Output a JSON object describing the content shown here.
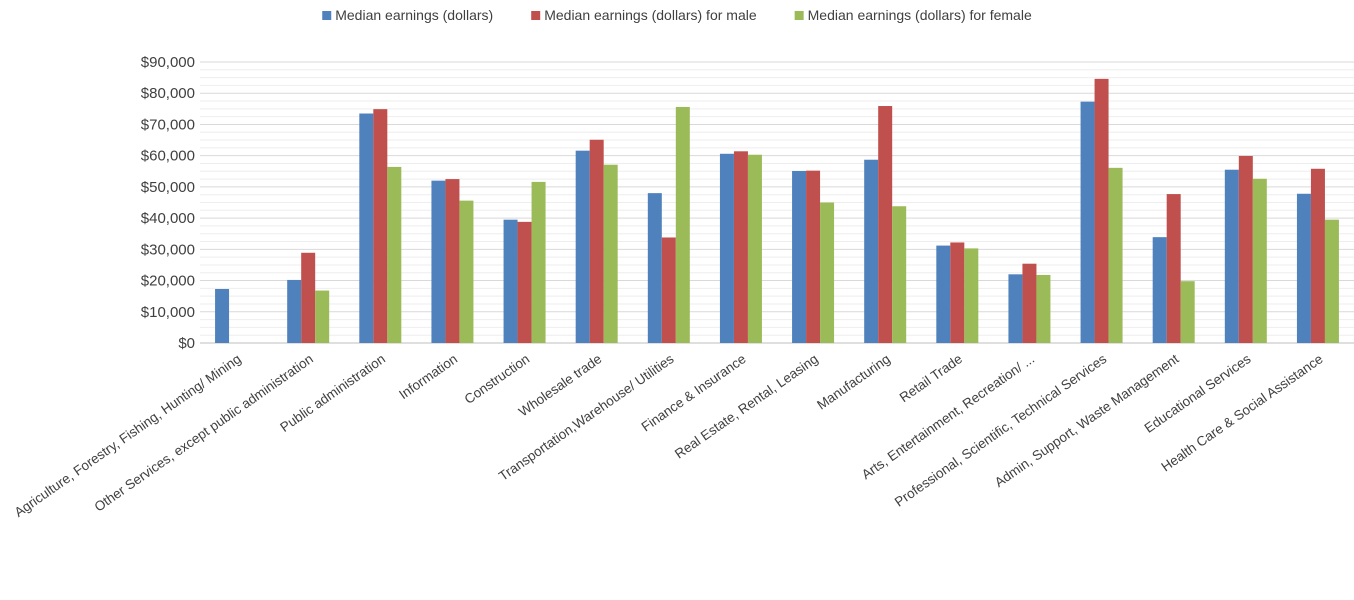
{
  "chart_data": {
    "type": "bar",
    "title": "",
    "xlabel": "",
    "ylabel": "",
    "ylim": [
      0,
      90000
    ],
    "y_major_step": 10000,
    "y_tick_labels": [
      "$0",
      "$10,000",
      "$20,000",
      "$30,000",
      "$40,000",
      "$50,000",
      "$60,000",
      "$70,000",
      "$80,000",
      "$90,000"
    ],
    "grid": true,
    "legend_position": "top",
    "categories": [
      "Agriculture, Forestry, Fishing, Hunting/ Mining",
      "Other Services, except public administration",
      "Public administration",
      "Information",
      "Construction",
      "Wholesale trade",
      "Transportation,Warehouse/ Utilities",
      "Finance & Insurance",
      "Real Estate, Rental, Leasing",
      "Manufacturing",
      "Retail Trade",
      "Arts, Entertainment, Recreation/ ...",
      "Professional, Scientific, Technical Services",
      "Admin, Support, Waste Management",
      "Educational Services",
      "Health Care & Social Assistance"
    ],
    "series": [
      {
        "name": "Median earnings (dollars)",
        "color": "#4f81bd",
        "values": [
          17300,
          20200,
          73500,
          52000,
          39500,
          61600,
          48000,
          60600,
          55100,
          58700,
          31200,
          22000,
          77300,
          33900,
          55500,
          47800
        ]
      },
      {
        "name": "Median earnings (dollars) for male",
        "color": "#c0504d",
        "values": [
          null,
          28900,
          74900,
          52500,
          38800,
          65100,
          33800,
          61400,
          55200,
          75900,
          32200,
          25400,
          84600,
          47700,
          59900,
          55800
        ]
      },
      {
        "name": "Median earnings (dollars) for female",
        "color": "#9bbb59",
        "values": [
          null,
          16800,
          56400,
          45600,
          51600,
          57100,
          75600,
          60300,
          45000,
          43800,
          30300,
          21800,
          56100,
          19800,
          52600,
          39500
        ]
      }
    ]
  }
}
